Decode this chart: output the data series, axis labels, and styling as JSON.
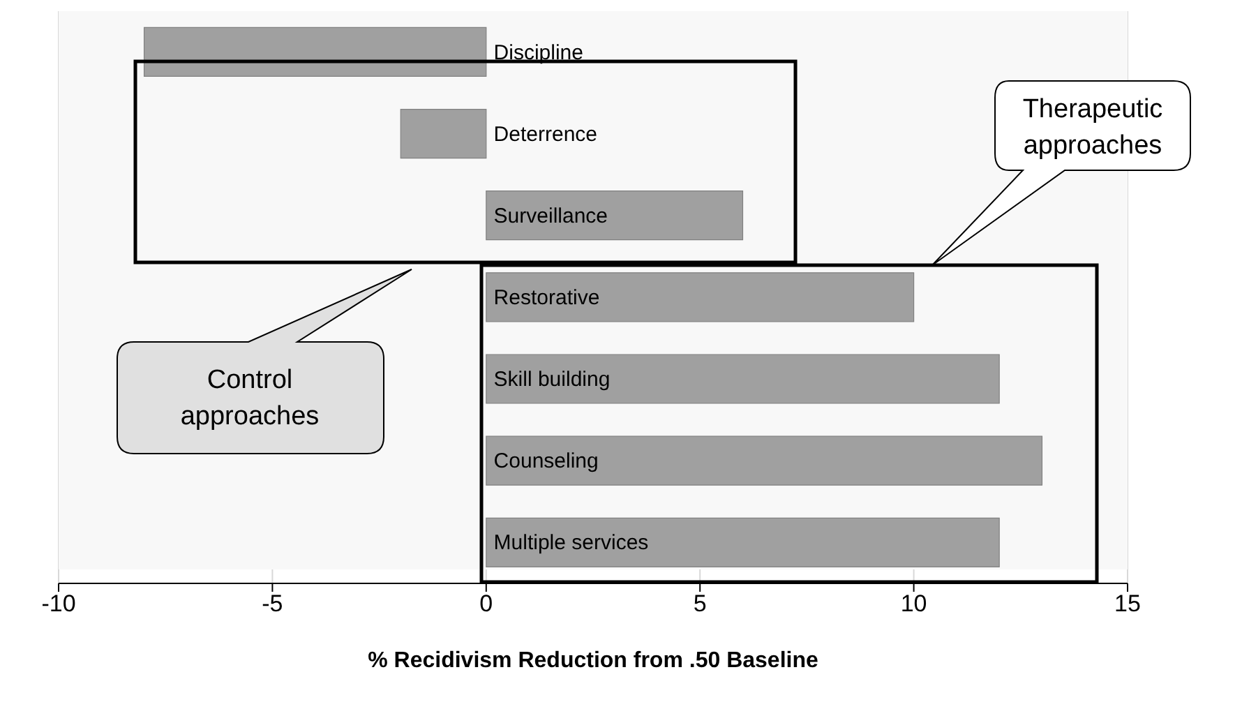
{
  "chart_data": {
    "type": "bar",
    "orientation": "horizontal",
    "xlabel": "% Recidivism Reduction from .50 Baseline",
    "categories": [
      "Discipline",
      "Deterrence",
      "Surveillance",
      "Restorative",
      "Skill building",
      "Counseling",
      "Multiple services"
    ],
    "values": [
      -8,
      -2,
      6,
      10,
      12,
      13,
      12
    ],
    "color": "#a0a0a0",
    "xlim": [
      -10,
      15
    ],
    "xticks": [
      -10,
      -5,
      0,
      5,
      10,
      15
    ],
    "grid": "x",
    "annotations": [
      "Control approaches",
      "Therapeutic approaches"
    ]
  }
}
